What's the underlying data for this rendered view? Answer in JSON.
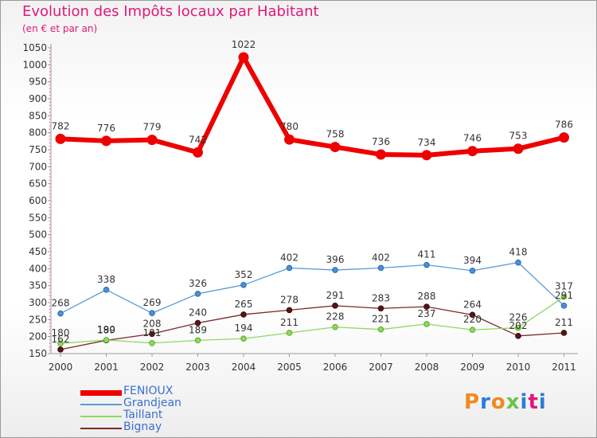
{
  "title": "Evolution des Impôts locaux par Habitant",
  "subtitle": "(en € et par an)",
  "brand": {
    "letters": [
      "P",
      "r",
      "o",
      "x",
      "i",
      "t",
      "i"
    ],
    "colors": [
      "#f08a1c",
      "#2a7dd6",
      "#f08a1c",
      "#6cc24a",
      "#2a7dd6",
      "#e0187a",
      "#2a7dd6"
    ]
  },
  "chart_data": {
    "type": "line",
    "title": "Evolution des Impôts locaux par Habitant",
    "subtitle": "(en € et par an)",
    "xlabel": "",
    "ylabel": "",
    "x": [
      "2000",
      "2001",
      "2002",
      "2003",
      "2004",
      "2005",
      "2006",
      "2007",
      "2008",
      "2009",
      "2010",
      "2011"
    ],
    "ylim": [
      150,
      1050
    ],
    "yticks": [
      "150",
      "200",
      "250",
      "300",
      "350",
      "400",
      "450",
      "500",
      "550",
      "600",
      "650",
      "700",
      "750",
      "800",
      "850",
      "900",
      "950",
      "1000",
      "1050"
    ],
    "grid": false,
    "legend_position": "bottom-left",
    "series": [
      {
        "name": "FENIOUX",
        "color": "#ee0000",
        "values": [
          782,
          776,
          779,
          742,
          1022,
          780,
          758,
          736,
          734,
          746,
          753,
          786
        ],
        "labels": [
          "782",
          "776",
          "779",
          "742",
          "1022",
          "780",
          "758",
          "736",
          "734",
          "746",
          "753",
          "786"
        ]
      },
      {
        "name": "Grandjean",
        "color": "#5b9bd5",
        "values": [
          268,
          338,
          269,
          326,
          352,
          402,
          396,
          402,
          411,
          394,
          418,
          291
        ],
        "labels": [
          "268",
          "338",
          "269",
          "326",
          "352",
          "402",
          "396",
          "402",
          "411",
          "394",
          "418",
          "291"
        ]
      },
      {
        "name": "Taillant",
        "color": "#90d860",
        "values": [
          180,
          190,
          181,
          189,
          194,
          211,
          228,
          221,
          237,
          220,
          226,
          317
        ],
        "labels": [
          "180",
          "190",
          "181",
          "189",
          "194",
          "211",
          "228",
          "221",
          "237",
          "220",
          "226",
          "317"
        ]
      },
      {
        "name": "Bignay",
        "color": "#7a2a2a",
        "values": [
          162,
          189,
          208,
          240,
          265,
          278,
          291,
          283,
          288,
          264,
          202,
          211
        ],
        "labels": [
          "162",
          "189",
          "208",
          "240",
          "265",
          "278",
          "291",
          "283",
          "288",
          "264",
          "202",
          "211"
        ]
      }
    ]
  }
}
